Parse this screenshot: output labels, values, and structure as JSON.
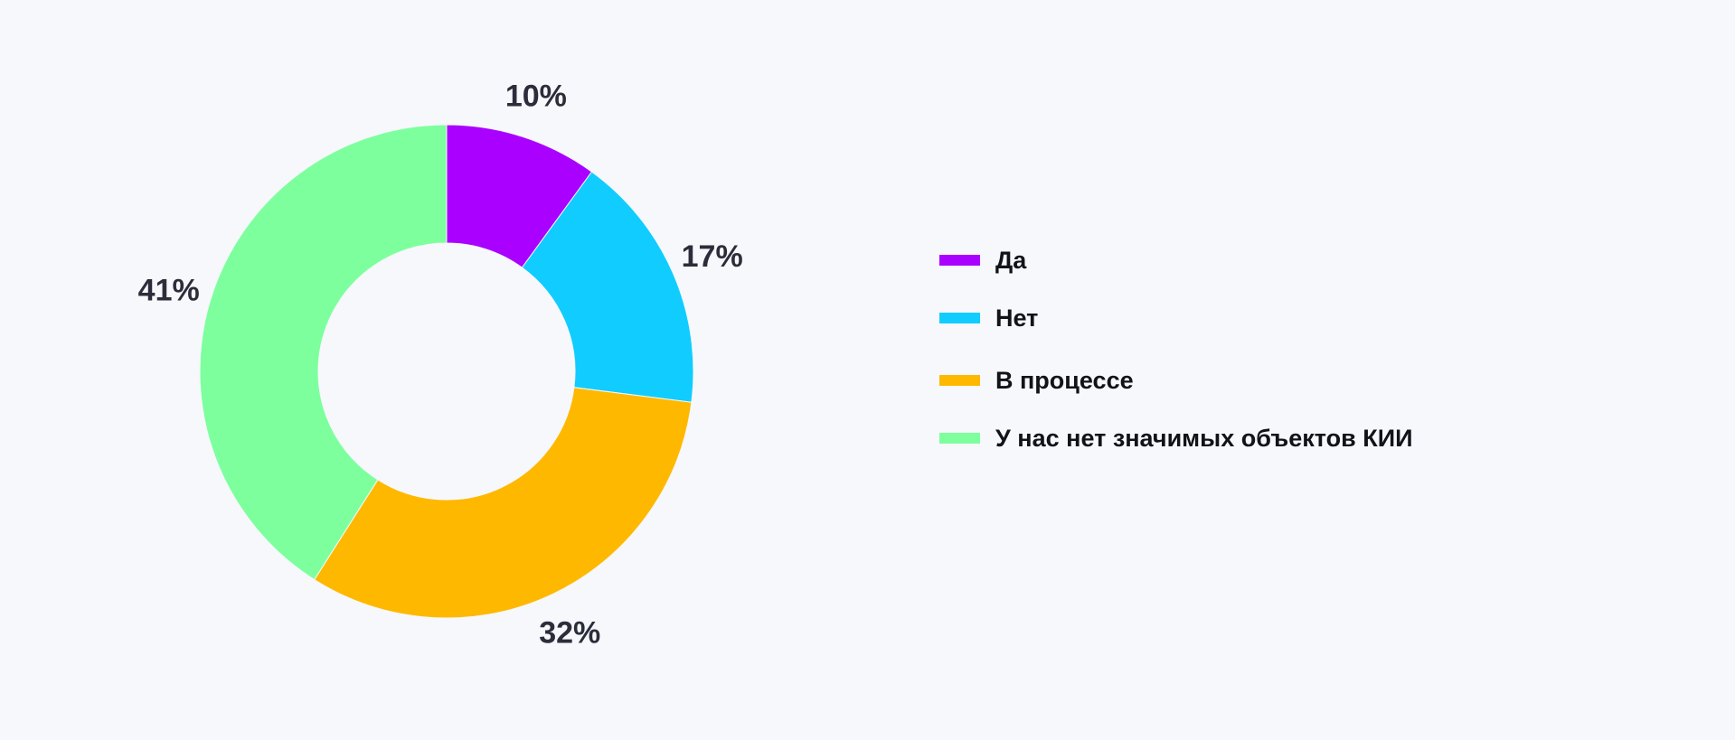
{
  "chart_data": {
    "type": "pie",
    "variant": "donut",
    "categories": [
      "Да",
      "Нет",
      "В процессе",
      "У нас нет значимых объектов КИИ"
    ],
    "values": [
      10,
      17,
      32,
      41
    ],
    "value_labels": [
      "10%",
      "17%",
      "32%",
      "41%"
    ],
    "unit": "%",
    "colors": [
      "#aa00ff",
      "#11ccff",
      "#ffb800",
      "#7dff9e"
    ],
    "start_angle": "12 o'clock",
    "direction": "clockwise",
    "legend_position": "right"
  },
  "legend": {
    "items": [
      {
        "label": "Да",
        "color": "#aa00ff"
      },
      {
        "label": "Нет",
        "color": "#11ccff"
      },
      {
        "label": "В процессе",
        "color": "#ffb800"
      },
      {
        "label": "У нас нет значимых объектов КИИ",
        "color": "#7dff9e"
      }
    ]
  },
  "colors": {
    "background": "#f6f8fb",
    "label_text": "#2b2d3a",
    "legend_text": "#111318"
  }
}
